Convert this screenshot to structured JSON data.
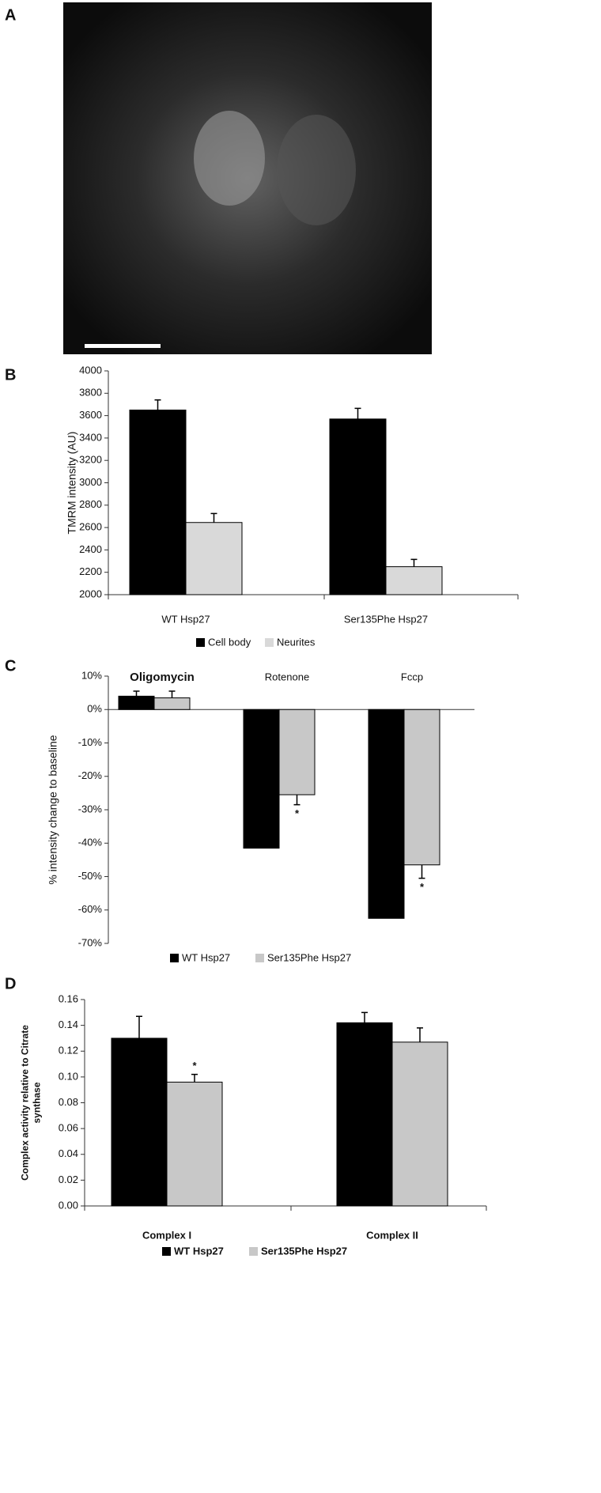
{
  "panel_labels": [
    "A",
    "B",
    "C",
    "D"
  ],
  "chart_data": [
    {
      "type": "bar",
      "ylabel": [
        "TMRM intensity (AU)"
      ],
      "categories": [
        "WT Hsp27",
        "Ser135Phe Hsp27"
      ],
      "series": [
        {
          "name": "Cell body",
          "color": "#000000",
          "values": [
            3650,
            3570
          ],
          "errors": [
            90,
            95
          ]
        },
        {
          "name": "Neurites",
          "color": "#d9d9d9",
          "values": [
            2645,
            2250
          ],
          "errors": [
            80,
            65
          ]
        }
      ],
      "ylim": [
        2000,
        4000
      ],
      "yticks": [
        2000,
        2200,
        2400,
        2600,
        2800,
        3000,
        3200,
        3400,
        3600,
        3800,
        4000
      ],
      "legend": "bottom"
    },
    {
      "type": "bar",
      "ylabel": [
        "% intensity change to baseline"
      ],
      "categories": [
        "Oligomycin",
        "Rotenone",
        "Fccp"
      ],
      "series": [
        {
          "name": "WT Hsp27",
          "color": "#000000",
          "values": [
            4,
            -41.5,
            -62.5
          ],
          "errors": [
            1.5,
            null,
            null
          ],
          "markers": [
            null,
            null,
            null
          ]
        },
        {
          "name": "Ser135Phe Hsp27",
          "color": "#c8c8c8",
          "values": [
            3.5,
            -25.5,
            -46.5
          ],
          "errors": [
            2,
            3,
            4
          ],
          "markers": [
            null,
            "*",
            "*"
          ]
        }
      ],
      "ylim": [
        -70,
        10
      ],
      "yticks": [
        {
          "value": -70,
          "label": "-70%"
        },
        {
          "value": -60,
          "label": "-60%"
        },
        {
          "value": -50,
          "label": "-50%"
        },
        {
          "value": -40,
          "label": "-40%"
        },
        {
          "value": -30,
          "label": "-30%"
        },
        {
          "value": -20,
          "label": "-20%"
        },
        {
          "value": -10,
          "label": "-10%"
        },
        {
          "value": 0,
          "label": "0%"
        },
        {
          "value": 10,
          "label": "10%"
        }
      ],
      "legend": "bottom"
    },
    {
      "type": "bar",
      "ylabel": [
        "Complex activity relative to Citrate",
        "synthase"
      ],
      "categories": [
        "Complex I",
        "Complex II"
      ],
      "series": [
        {
          "name": "WT Hsp27",
          "color": "#000000",
          "values": [
            0.13,
            0.142
          ],
          "errors": [
            0.017,
            0.008
          ],
          "markers": [
            null,
            null
          ]
        },
        {
          "name": "Ser135Phe Hsp27",
          "color": "#c8c8c8",
          "values": [
            0.096,
            0.127
          ],
          "errors": [
            0.006,
            0.011
          ],
          "markers": [
            "*",
            null
          ]
        }
      ],
      "ylim": [
        0,
        0.16
      ],
      "yticks": [
        {
          "value": 0,
          "label": "0.00"
        },
        {
          "value": 0.02,
          "label": "0.02"
        },
        {
          "value": 0.04,
          "label": "0.04"
        },
        {
          "value": 0.06,
          "label": "0.06"
        },
        {
          "value": 0.08,
          "label": "0.08"
        },
        {
          "value": 0.1,
          "label": "0.10"
        },
        {
          "value": 0.12,
          "label": "0.12"
        },
        {
          "value": 0.14,
          "label": "0.14"
        },
        {
          "value": 0.16,
          "label": "0.16"
        }
      ],
      "legend": "bottom"
    }
  ]
}
